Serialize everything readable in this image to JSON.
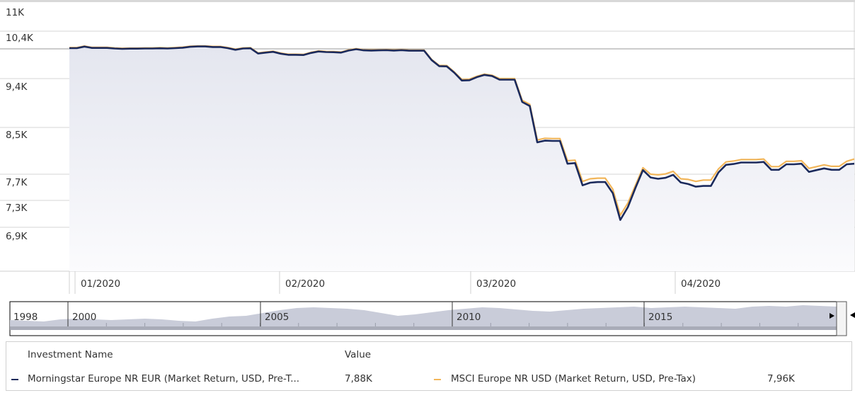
{
  "chart_data": {
    "type": "line",
    "y_ticks": [
      "11K",
      "10,4K",
      "9,4K",
      "8,5K",
      "7,7K",
      "7,3K",
      "6,9K"
    ],
    "x_ticks": [
      "01/2020",
      "02/2020",
      "03/2020",
      "04/2020"
    ],
    "series": [
      {
        "name": "Morningstar Europe NR EUR (Market Return, USD, Pre-T...",
        "color": "#1b2a5c",
        "values": [
          10220,
          10220,
          10260,
          10225,
          10225,
          10225,
          10210,
          10200,
          10205,
          10205,
          10210,
          10210,
          10215,
          10210,
          10220,
          10230,
          10255,
          10265,
          10265,
          10250,
          10250,
          10220,
          10175,
          10210,
          10215,
          10075,
          10100,
          10120,
          10070,
          10040,
          10040,
          10035,
          10090,
          10130,
          10115,
          10110,
          10100,
          10155,
          10190,
          10160,
          10155,
          10160,
          10165,
          10155,
          10165,
          10150,
          10150,
          10150,
          9900,
          9735,
          9730,
          9560,
          9365,
          9370,
          9440,
          9500,
          9470,
          9380,
          9380,
          9380,
          8970,
          8895,
          8245,
          8275,
          8270,
          8270,
          7880,
          7890,
          7530,
          7570,
          7580,
          7580,
          7410,
          7010,
          7200,
          7490,
          7770,
          7650,
          7630,
          7645,
          7690,
          7575,
          7550,
          7510,
          7520,
          7520,
          7730,
          7860,
          7875,
          7900,
          7900,
          7900,
          7910,
          7775,
          7775,
          7870,
          7870,
          7880,
          7740,
          7770,
          7800,
          7775,
          7775,
          7870,
          7880
        ]
      },
      {
        "name": "MSCI Europe NR USD (Market Return, USD, Pre-Tax)",
        "color": "#f2b65a",
        "values": [
          10235,
          10235,
          10275,
          10240,
          10240,
          10240,
          10225,
          10215,
          10220,
          10220,
          10225,
          10225,
          10230,
          10225,
          10235,
          10245,
          10270,
          10280,
          10280,
          10265,
          10265,
          10235,
          10190,
          10225,
          10230,
          10090,
          10115,
          10135,
          10085,
          10055,
          10055,
          10050,
          10105,
          10145,
          10130,
          10125,
          10115,
          10170,
          10205,
          10175,
          10170,
          10175,
          10180,
          10170,
          10180,
          10165,
          10165,
          10165,
          9915,
          9755,
          9750,
          9580,
          9385,
          9390,
          9460,
          9520,
          9490,
          9400,
          9400,
          9400,
          9000,
          8925,
          8285,
          8315,
          8310,
          8310,
          7930,
          7940,
          7590,
          7630,
          7640,
          7640,
          7470,
          7080,
          7260,
          7530,
          7810,
          7700,
          7690,
          7705,
          7750,
          7630,
          7620,
          7590,
          7610,
          7610,
          7790,
          7910,
          7925,
          7950,
          7950,
          7950,
          7960,
          7830,
          7830,
          7920,
          7920,
          7930,
          7800,
          7830,
          7860,
          7835,
          7835,
          7920,
          7960
        ]
      }
    ],
    "navigator": {
      "labels": [
        "1998",
        "2000",
        "2005",
        "2010",
        "2015"
      ]
    }
  },
  "legend": {
    "header_name": "Investment Name",
    "header_value": "Value",
    "row1_name": "Morningstar Europe NR EUR (Market Return, USD, Pre-T...",
    "row1_value": "7,88K",
    "row2_name": "MSCI Europe NR USD (Market Return, USD, Pre-Tax)",
    "row2_value": "7,96K"
  }
}
